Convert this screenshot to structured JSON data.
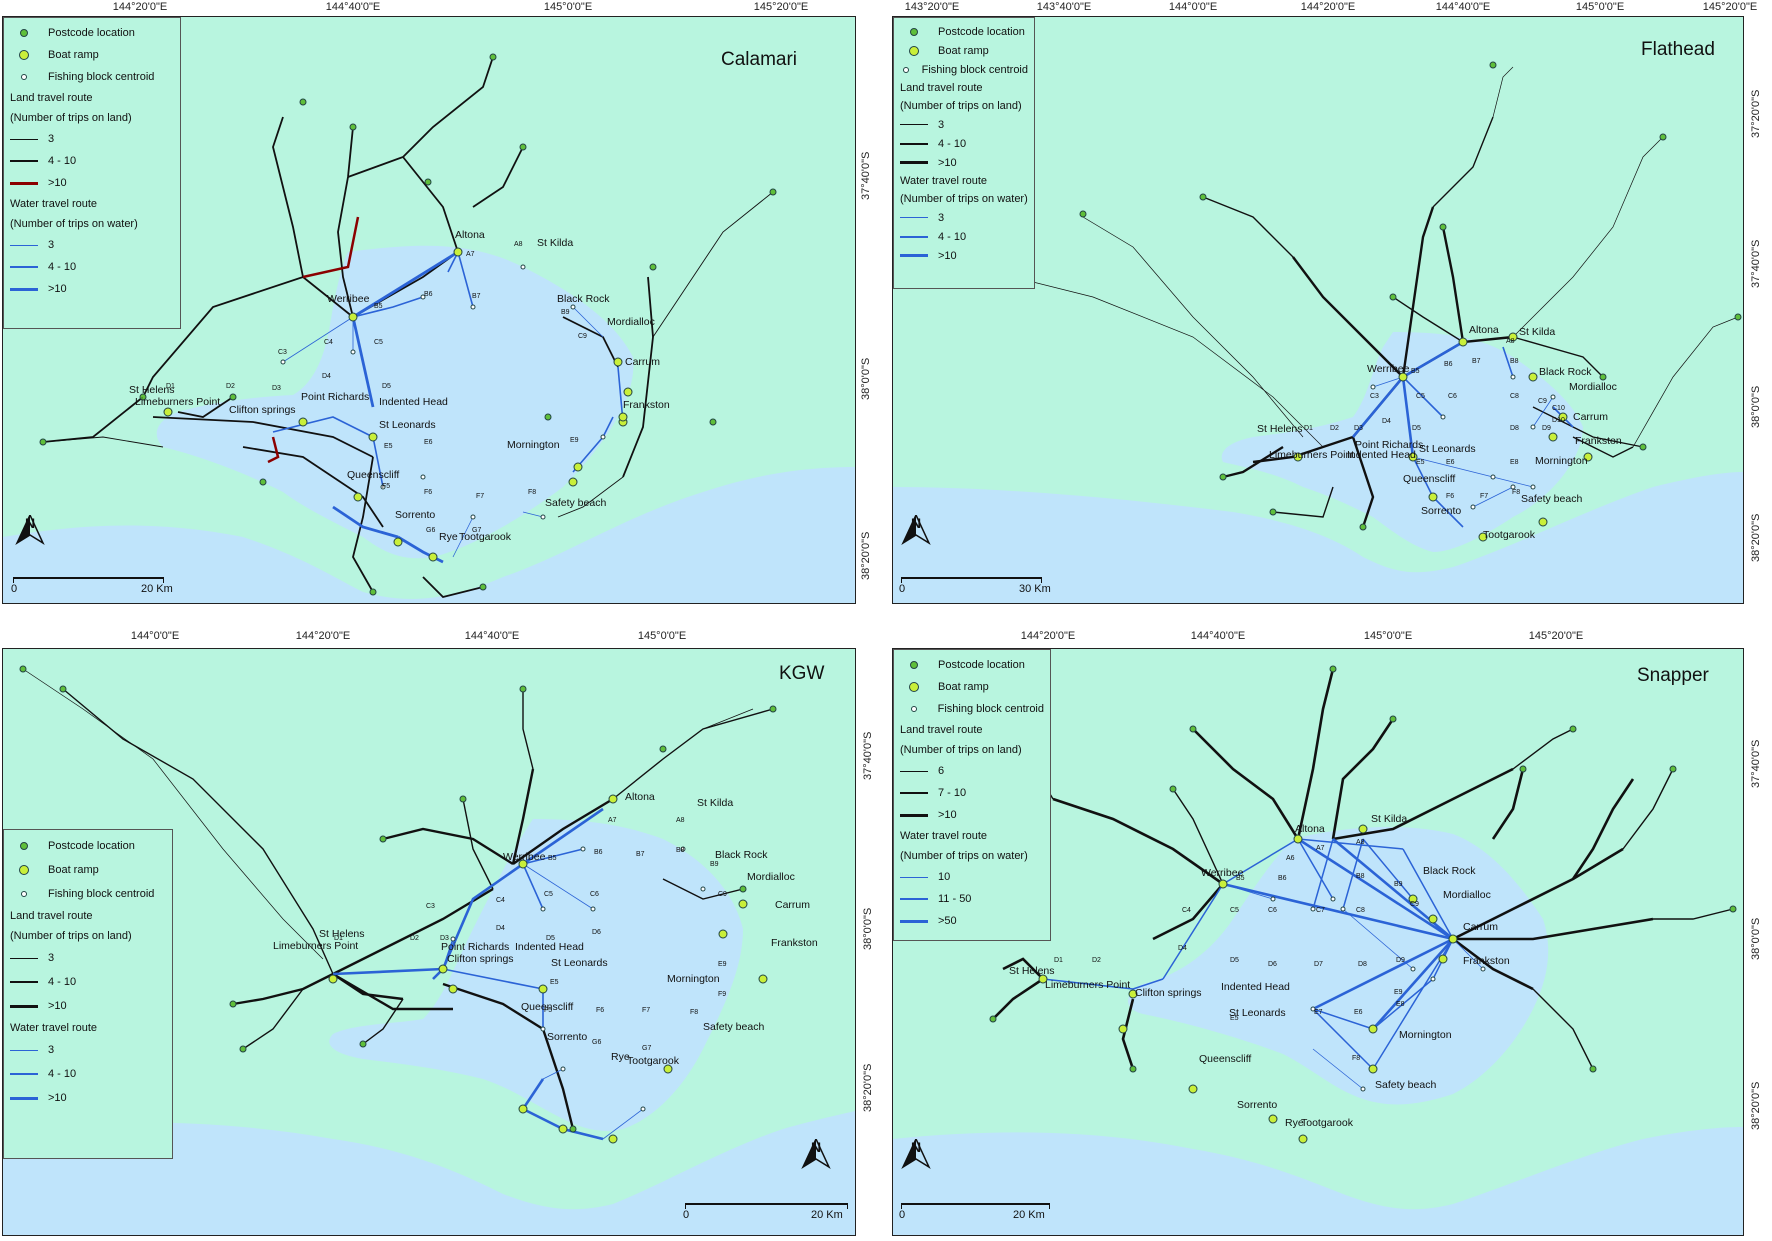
{
  "legend_labels": {
    "postcode": "Postcode location",
    "ramp": "Boat ramp",
    "block": "Fishing block centroid",
    "land_head1": "Land travel route",
    "land_head2": "(Number of trips on land)",
    "water_head1": "Water travel route",
    "water_head2": "(Number of trips on water)"
  },
  "colors": {
    "land_bg": "#b8f5df",
    "water": "#bfe4fb",
    "land_line": "#111111",
    "land_red": "#8b0000",
    "water_line": "#2b63d6",
    "postcode": "#5fbf3a",
    "ramp": "#c9ef3a"
  },
  "panels": [
    {
      "id": "calamari",
      "title": "Calamari",
      "lon_ticks": [
        "144°20'0\"E",
        "144°40'0\"E",
        "145°0'0\"E",
        "145°20'0\"E"
      ],
      "lat_ticks": [
        "37°40'0\"S",
        "38°0'0\"S",
        "38°20'0\"S"
      ],
      "land_classes": [
        "3",
        "4 - 10",
        ">10"
      ],
      "water_classes": [
        "3",
        "4 - 10",
        ">10"
      ],
      "scale": {
        "start": "0",
        "end": "20 Km"
      },
      "north": "N",
      "sites": [
        "Altona",
        "St Kilda",
        "Black Rock",
        "Mordialloc",
        "Carrum",
        "Frankston",
        "Werribee",
        "St Helens",
        "Limeburners Point",
        "Clifton springs",
        "Point Richards",
        "Indented Head",
        "St Leonards",
        "Mornington",
        "Queenscliff",
        "Safety beach",
        "Sorrento",
        "Rye",
        "Tootgarook"
      ],
      "blocks": [
        "A7",
        "A8",
        "B5",
        "B6",
        "B7",
        "B9",
        "C3",
        "C4",
        "C5",
        "C9",
        "D1",
        "D2",
        "D3",
        "D4",
        "D5",
        "E5",
        "E6",
        "E9",
        "F5",
        "F6",
        "F7",
        "F8",
        "G6",
        "G7"
      ]
    },
    {
      "id": "flathead",
      "title": "Flathead",
      "lon_ticks": [
        "143°20'0\"E",
        "143°40'0\"E",
        "144°0'0\"E",
        "144°20'0\"E",
        "144°40'0\"E",
        "145°0'0\"E",
        "145°20'0\"E"
      ],
      "lat_ticks": [
        "37°20'0\"S",
        "37°40'0\"S",
        "38°0'0\"S",
        "38°20'0\"S"
      ],
      "land_classes": [
        "3",
        "4 - 10",
        ">10"
      ],
      "water_classes": [
        "3",
        "4 - 10",
        ">10"
      ],
      "scale": {
        "start": "0",
        "end": "30 Km"
      },
      "north": "N",
      "sites": [
        "Altona",
        "St Kilda",
        "Black Rock",
        "Mordialloc",
        "Werribee",
        "Carrum",
        "Frankston",
        "St Helens",
        "Point Richards",
        "St Leonards",
        "Limeburners Point",
        "Indented Head",
        "Mornington",
        "Queenscliff",
        "Safety beach",
        "Sorrento",
        "Tootgarook"
      ],
      "blocks": [
        "A8",
        "B5",
        "B6",
        "B7",
        "B8",
        "C3",
        "C5",
        "C6",
        "C8",
        "C9",
        "C10",
        "D1",
        "D2",
        "D3",
        "D4",
        "D5",
        "D8",
        "D9",
        "D10",
        "E5",
        "E6",
        "E8",
        "F6",
        "F7",
        "F8"
      ]
    },
    {
      "id": "kgw",
      "title": "KGW",
      "lon_ticks": [
        "144°0'0\"E",
        "144°20'0\"E",
        "144°40'0\"E",
        "145°0'0\"E"
      ],
      "lat_ticks": [
        "37°40'0\"S",
        "38°0'0\"S",
        "38°20'0\"S"
      ],
      "land_classes": [
        "3",
        "4 - 10",
        ">10"
      ],
      "water_classes": [
        "3",
        "4 - 10",
        ">10"
      ],
      "scale": {
        "start": "0",
        "end": "20 Km"
      },
      "north": "N",
      "sites": [
        "Altona",
        "St Kilda",
        "Black Rock",
        "Mordialloc",
        "Carrum",
        "Werribee",
        "Frankston",
        "St Helens",
        "Limeburners Point",
        "Point Richards",
        "Indented Head",
        "Clifton springs",
        "St Leonards",
        "Mornington",
        "Queenscliff",
        "Safety beach",
        "Sorrento",
        "Rye",
        "Tootgarook"
      ],
      "blocks": [
        "A7",
        "A8",
        "B5",
        "B6",
        "B7",
        "B8",
        "B9",
        "C3",
        "C4",
        "C5",
        "C6",
        "C9",
        "D1",
        "D2",
        "D3",
        "D4",
        "D5",
        "D6",
        "E5",
        "E9",
        "F5",
        "F6",
        "F7",
        "F8",
        "F9",
        "G6",
        "G7"
      ]
    },
    {
      "id": "snapper",
      "title": "Snapper",
      "lon_ticks": [
        "144°20'0\"E",
        "144°40'0\"E",
        "145°0'0\"E",
        "145°20'0\"E"
      ],
      "lat_ticks": [
        "37°40'0\"S",
        "38°0'0\"S",
        "38°20'0\"S"
      ],
      "land_classes": [
        "6",
        "7 - 10",
        ">10"
      ],
      "water_classes": [
        "10",
        "11 - 50",
        ">50"
      ],
      "scale": {
        "start": "0",
        "end": "20 Km"
      },
      "north": "N",
      "sites": [
        "Altona",
        "St Kilda",
        "Werribee",
        "Black Rock",
        "Mordialloc",
        "Carrum",
        "Frankston",
        "St Helens",
        "Limeburners Point",
        "Clifton springs",
        "Indented Head",
        "St Leonards",
        "Mornington",
        "Queenscliff",
        "Safety beach",
        "Sorrento",
        "Rye",
        "Tootgarook"
      ],
      "blocks": [
        "A6",
        "A7",
        "A8",
        "B5",
        "B6",
        "B8",
        "B9",
        "C4",
        "C5",
        "C6",
        "C7",
        "C8",
        "C9",
        "D1",
        "D2",
        "D4",
        "D5",
        "D6",
        "D7",
        "D8",
        "D9",
        "E5",
        "E6",
        "E7",
        "E8",
        "E9",
        "F8"
      ]
    }
  ]
}
